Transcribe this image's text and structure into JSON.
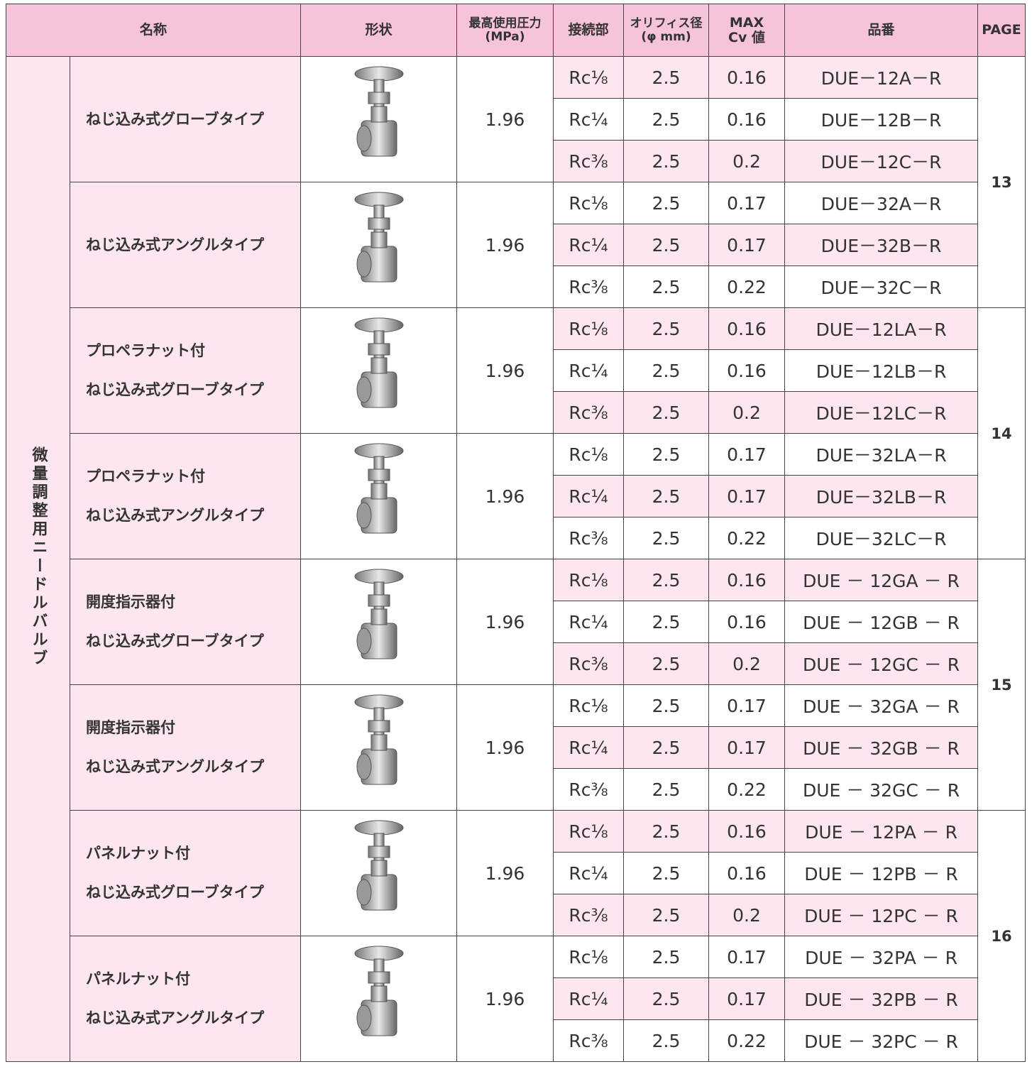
{
  "header": {
    "name": "名称",
    "shape": "形状",
    "pressure": [
      "最高使用圧力",
      "(MPa)"
    ],
    "connection": "接続部",
    "orifice": [
      "オリフィス径",
      "(φ mm)"
    ],
    "cv": [
      "MAX",
      "Cv 値"
    ],
    "part": "品番",
    "page": "PAGE"
  },
  "category": "微量調整用ニードルバルブ",
  "groups": [
    {
      "name": [
        "ねじ込み式グローブタイプ"
      ],
      "pressure": 1.96,
      "rows": [
        {
          "connection": "Rc¹⁄₈",
          "orifice": 2.5,
          "cv": 0.16,
          "part": "DUE－12A－R"
        },
        {
          "connection": "Rc¹⁄₄",
          "orifice": 2.5,
          "cv": 0.16,
          "part": "DUE－12B－R"
        },
        {
          "connection": "Rc³⁄₈",
          "orifice": 2.5,
          "cv": 0.2,
          "part": "DUE－12C－R"
        }
      ]
    },
    {
      "name": [
        "ねじ込み式アングルタイプ"
      ],
      "pressure": 1.96,
      "rows": [
        {
          "connection": "Rc¹⁄₈",
          "orifice": 2.5,
          "cv": 0.17,
          "part": "DUE－32A－R"
        },
        {
          "connection": "Rc¹⁄₄",
          "orifice": 2.5,
          "cv": 0.17,
          "part": "DUE－32B－R"
        },
        {
          "connection": "Rc³⁄₈",
          "orifice": 2.5,
          "cv": 0.22,
          "part": "DUE－32C－R"
        }
      ]
    },
    {
      "name": [
        "プロペラナット付",
        "ねじ込み式グローブタイプ"
      ],
      "pressure": 1.96,
      "rows": [
        {
          "connection": "Rc¹⁄₈",
          "orifice": 2.5,
          "cv": 0.16,
          "part": "DUE－12LA－R"
        },
        {
          "connection": "Rc¹⁄₄",
          "orifice": 2.5,
          "cv": 0.16,
          "part": "DUE－12LB－R"
        },
        {
          "connection": "Rc³⁄₈",
          "orifice": 2.5,
          "cv": 0.2,
          "part": "DUE－12LC－R"
        }
      ]
    },
    {
      "name": [
        "プロペラナット付",
        "ねじ込み式アングルタイプ"
      ],
      "pressure": 1.96,
      "rows": [
        {
          "connection": "Rc¹⁄₈",
          "orifice": 2.5,
          "cv": 0.17,
          "part": "DUE－32LA－R"
        },
        {
          "connection": "Rc¹⁄₄",
          "orifice": 2.5,
          "cv": 0.17,
          "part": "DUE－32LB－R"
        },
        {
          "connection": "Rc³⁄₈",
          "orifice": 2.5,
          "cv": 0.22,
          "part": "DUE－32LC－R"
        }
      ]
    },
    {
      "name": [
        "開度指示器付",
        "ねじ込み式グローブタイプ"
      ],
      "pressure": 1.96,
      "rows": [
        {
          "connection": "Rc¹⁄₈",
          "orifice": 2.5,
          "cv": 0.16,
          "part": "DUE － 12GA － R"
        },
        {
          "connection": "Rc¹⁄₄",
          "orifice": 2.5,
          "cv": 0.16,
          "part": "DUE － 12GB － R"
        },
        {
          "connection": "Rc³⁄₈",
          "orifice": 2.5,
          "cv": 0.2,
          "part": "DUE － 12GC － R"
        }
      ]
    },
    {
      "name": [
        "開度指示器付",
        "ねじ込み式アングルタイプ"
      ],
      "pressure": 1.96,
      "rows": [
        {
          "connection": "Rc¹⁄₈",
          "orifice": 2.5,
          "cv": 0.17,
          "part": "DUE － 32GA － R"
        },
        {
          "connection": "Rc¹⁄₄",
          "orifice": 2.5,
          "cv": 0.17,
          "part": "DUE － 32GB － R"
        },
        {
          "connection": "Rc³⁄₈",
          "orifice": 2.5,
          "cv": 0.22,
          "part": "DUE － 32GC － R"
        }
      ]
    },
    {
      "name": [
        "パネルナット付",
        "ねじ込み式グローブタイプ"
      ],
      "pressure": 1.96,
      "rows": [
        {
          "connection": "Rc¹⁄₈",
          "orifice": 2.5,
          "cv": 0.16,
          "part": "DUE － 12PA － R"
        },
        {
          "connection": "Rc¹⁄₄",
          "orifice": 2.5,
          "cv": 0.16,
          "part": "DUE － 12PB － R"
        },
        {
          "connection": "Rc³⁄₈",
          "orifice": 2.5,
          "cv": 0.2,
          "part": "DUE － 12PC － R"
        }
      ]
    },
    {
      "name": [
        "パネルナット付",
        "ねじ込み式アングルタイプ"
      ],
      "pressure": 1.96,
      "rows": [
        {
          "connection": "Rc¹⁄₈",
          "orifice": 2.5,
          "cv": 0.17,
          "part": "DUE － 32PA － R"
        },
        {
          "connection": "Rc¹⁄₄",
          "orifice": 2.5,
          "cv": 0.17,
          "part": "DUE － 32PB － R"
        },
        {
          "connection": "Rc³⁄₈",
          "orifice": 2.5,
          "cv": 0.22,
          "part": "DUE － 32PC － R"
        }
      ]
    }
  ],
  "pages": [
    13,
    14,
    15,
    16
  ]
}
